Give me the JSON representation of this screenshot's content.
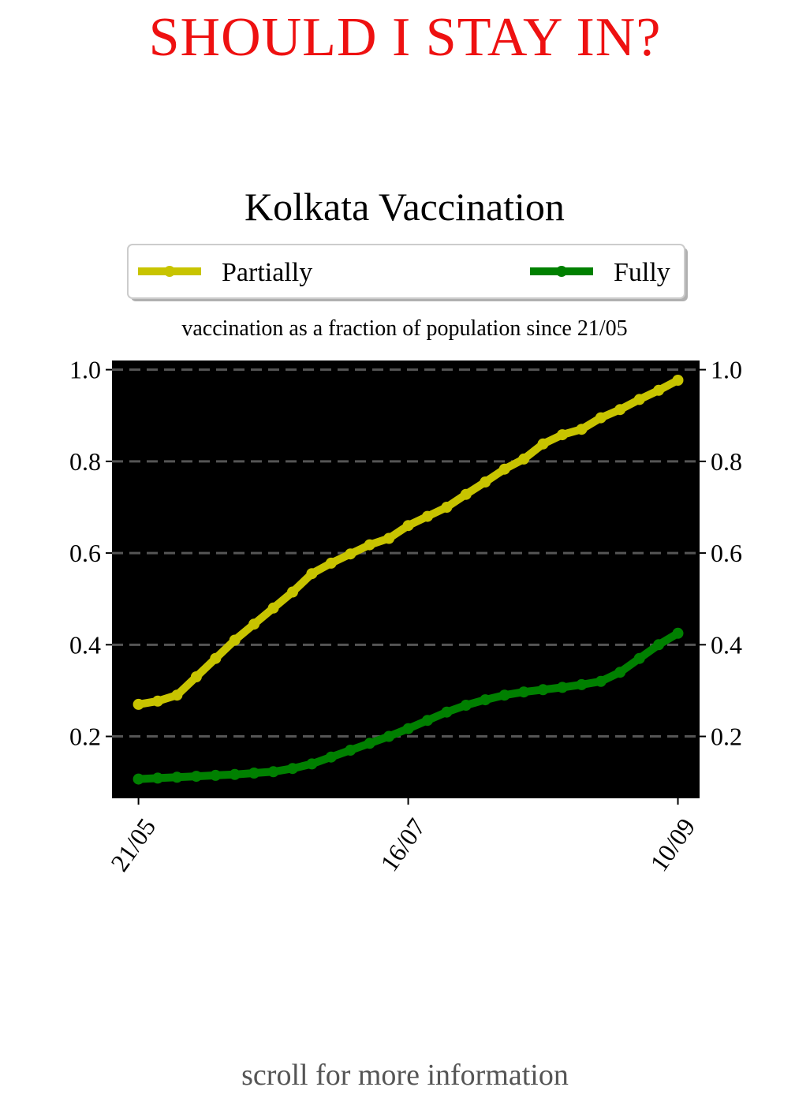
{
  "page": {
    "title": "SHOULD I STAY IN?",
    "title_color": "#ee1111",
    "footer": "scroll for more information"
  },
  "chart_data": {
    "type": "line",
    "title": "Kolkata Vaccination",
    "subtitle": "vaccination as a fraction of population since 21/05",
    "xlabel": "",
    "ylabel": "",
    "background": "#000000",
    "grid": "y-dashed",
    "legend_position": "top",
    "x_ticks": [
      {
        "day": 0,
        "label": "21/05"
      },
      {
        "day": 56,
        "label": "16/07"
      },
      {
        "day": 112,
        "label": "10/09"
      }
    ],
    "xlim": [
      -5.5,
      116.5
    ],
    "ylim": [
      0.065,
      1.02
    ],
    "y_ticks": [
      {
        "value": 0.2,
        "label": "0.2"
      },
      {
        "value": 0.4,
        "label": "0.4"
      },
      {
        "value": 0.6,
        "label": "0.6"
      },
      {
        "value": 0.8,
        "label": "0.8"
      },
      {
        "value": 1.0,
        "label": "1.0"
      }
    ],
    "series": [
      {
        "name": "Partially",
        "color": "#c8c400",
        "points": [
          [
            0,
            0.27
          ],
          [
            4,
            0.277
          ],
          [
            8,
            0.29
          ],
          [
            12,
            0.33
          ],
          [
            16,
            0.37
          ],
          [
            20,
            0.41
          ],
          [
            24,
            0.445
          ],
          [
            28,
            0.48
          ],
          [
            32,
            0.515
          ],
          [
            36,
            0.555
          ],
          [
            40,
            0.578
          ],
          [
            44,
            0.598
          ],
          [
            48,
            0.618
          ],
          [
            52,
            0.632
          ],
          [
            56,
            0.66
          ],
          [
            60,
            0.68
          ],
          [
            64,
            0.7
          ],
          [
            68,
            0.728
          ],
          [
            72,
            0.755
          ],
          [
            76,
            0.783
          ],
          [
            80,
            0.805
          ],
          [
            84,
            0.838
          ],
          [
            88,
            0.858
          ],
          [
            92,
            0.87
          ],
          [
            96,
            0.895
          ],
          [
            100,
            0.913
          ],
          [
            104,
            0.935
          ],
          [
            108,
            0.955
          ],
          [
            112,
            0.977
          ]
        ]
      },
      {
        "name": "Fully",
        "color": "#008000",
        "points": [
          [
            0,
            0.107
          ],
          [
            4,
            0.109
          ],
          [
            8,
            0.111
          ],
          [
            12,
            0.113
          ],
          [
            16,
            0.115
          ],
          [
            20,
            0.117
          ],
          [
            24,
            0.12
          ],
          [
            28,
            0.123
          ],
          [
            32,
            0.13
          ],
          [
            36,
            0.14
          ],
          [
            40,
            0.155
          ],
          [
            44,
            0.17
          ],
          [
            48,
            0.185
          ],
          [
            52,
            0.2
          ],
          [
            56,
            0.217
          ],
          [
            60,
            0.235
          ],
          [
            64,
            0.253
          ],
          [
            68,
            0.268
          ],
          [
            72,
            0.28
          ],
          [
            76,
            0.29
          ],
          [
            80,
            0.297
          ],
          [
            84,
            0.302
          ],
          [
            88,
            0.307
          ],
          [
            92,
            0.313
          ],
          [
            96,
            0.32
          ],
          [
            100,
            0.34
          ],
          [
            104,
            0.37
          ],
          [
            108,
            0.4
          ],
          [
            112,
            0.425
          ]
        ]
      }
    ]
  }
}
